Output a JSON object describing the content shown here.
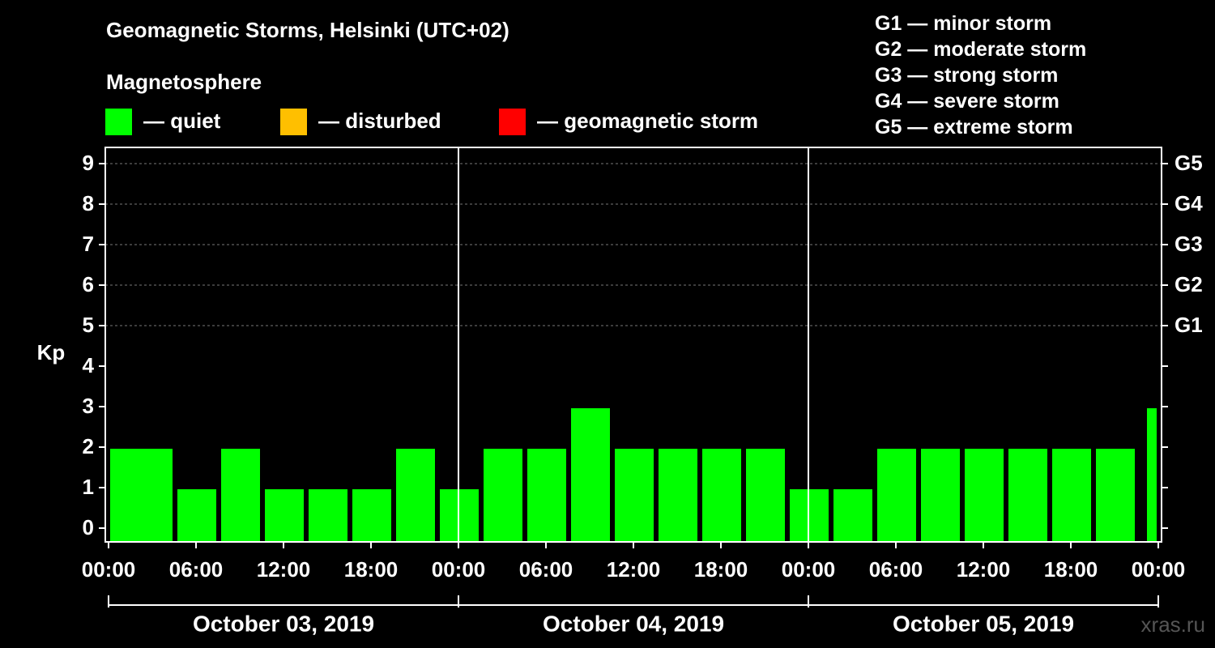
{
  "legend": {
    "heading": "Magnetosphere",
    "items": [
      {
        "label": "— quiet",
        "color": "#00ff00"
      },
      {
        "label": "— disturbed",
        "color": "#ffbf00"
      },
      {
        "label": "— geomagnetic storm",
        "color": "#ff0000"
      }
    ]
  },
  "storm_scale": [
    "G1 — minor storm",
    "G2 — moderate storm",
    "G3 — strong storm",
    "G4 — severe storm",
    "G5 — extreme storm"
  ],
  "watermark": "xras.ru",
  "chart_data": {
    "type": "bar",
    "title": "Geomagnetic Storms, Helsinki (UTC+02)",
    "xlabel": "",
    "ylabel": "Kp",
    "ylim": [
      0,
      9
    ],
    "yticks": [
      "0",
      "1",
      "2",
      "3",
      "4",
      "5",
      "6",
      "7",
      "8",
      "9"
    ],
    "right_ticks": [
      {
        "kp": 5,
        "label": "G1"
      },
      {
        "kp": 6,
        "label": "G2"
      },
      {
        "kp": 7,
        "label": "G3"
      },
      {
        "kp": 8,
        "label": "G4"
      },
      {
        "kp": 9,
        "label": "G5"
      }
    ],
    "grid": true,
    "days": [
      "October 03, 2019",
      "October 04, 2019",
      "October 05, 2019"
    ],
    "x_tick_labels": [
      "00:00",
      "06:00",
      "12:00",
      "18:00",
      "00:00",
      "06:00",
      "12:00",
      "18:00",
      "00:00",
      "06:00",
      "12:00",
      "18:00",
      "00:00"
    ],
    "categories": [
      "03 00:00",
      "03 03:00",
      "03 06:00",
      "03 09:00",
      "03 12:00",
      "03 15:00",
      "03 18:00",
      "03 21:00",
      "04 00:00",
      "04 03:00",
      "04 06:00",
      "04 09:00",
      "04 12:00",
      "04 15:00",
      "04 18:00",
      "04 21:00",
      "05 00:00",
      "05 03:00",
      "05 06:00",
      "05 09:00",
      "05 12:00",
      "05 15:00",
      "05 18:00",
      "05 21:00",
      "06 00:00"
    ],
    "values": [
      2,
      2,
      1,
      2,
      1,
      1,
      1,
      2,
      1,
      2,
      2,
      3,
      2,
      2,
      2,
      2,
      1,
      1,
      2,
      2,
      2,
      2,
      2,
      2,
      3
    ],
    "bar_color": "#00ff00"
  }
}
